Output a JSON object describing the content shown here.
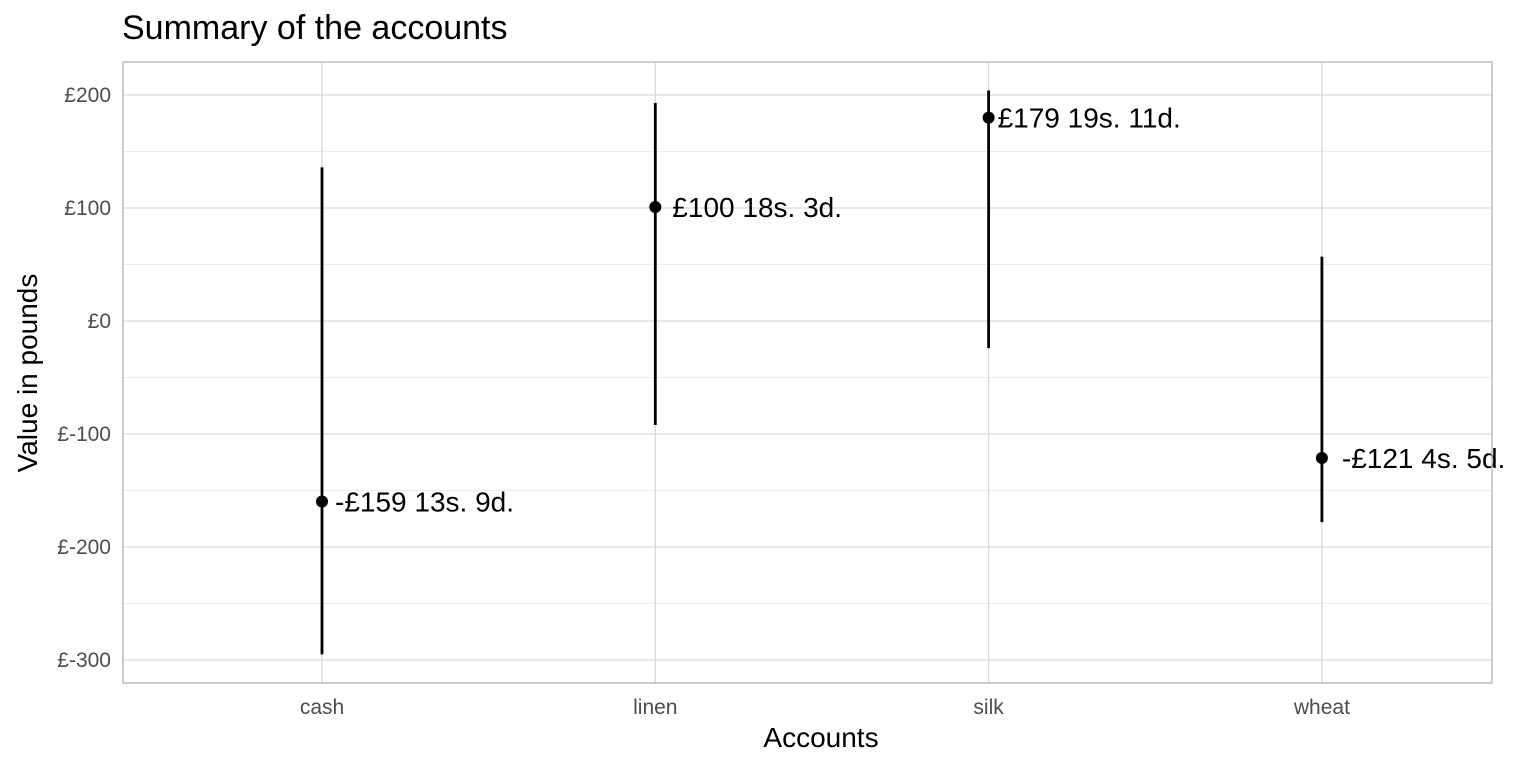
{
  "chart_data": {
    "type": "pointrange",
    "title": "Summary of the accounts",
    "xlabel": "Accounts",
    "ylabel": "Value in pounds",
    "categories": [
      "cash",
      "linen",
      "silk",
      "wheat"
    ],
    "values": [
      -159.69,
      100.91,
      179.99,
      -121.22
    ],
    "lower": [
      -295,
      -92,
      -24,
      -178
    ],
    "upper": [
      136,
      193,
      204,
      57
    ],
    "labels": [
      "-£159 13s. 9d.",
      "£100 18s. 3d.",
      "£179 19s. 11d.",
      "-£121 4s. 5d."
    ],
    "yticks": [
      200,
      100,
      0,
      -100,
      -200,
      -300
    ],
    "ytick_labels": [
      "£200",
      "£100",
      "£0",
      "£-100",
      "£-200",
      "£-300"
    ],
    "ylim": [
      -320,
      230
    ],
    "grid": true,
    "colors": {
      "point": "#000000",
      "grid": "#d9d9d9",
      "border": "#b3b3b3"
    }
  }
}
